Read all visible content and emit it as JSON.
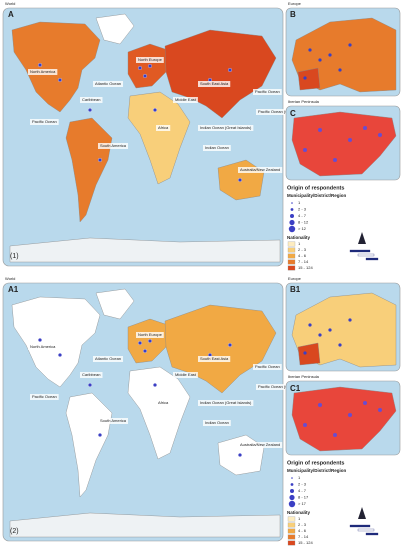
{
  "panels": [
    {
      "label": "(1)",
      "world": {
        "title": "World",
        "letter": "A",
        "regions": [
          "North America",
          "Atlantic Ocean",
          "Caribbean",
          "Pacific Ocean",
          "South America",
          "North Europe",
          "Middle East",
          "South East Asia",
          "Pacific Ocean",
          "Pacific Ocean (Great Islands)",
          "Indian Ocean (Great Islands)",
          "Africa",
          "Indian Ocean",
          "Australia/New Zealand"
        ]
      },
      "europe": {
        "title": "Europe",
        "letter": "B"
      },
      "iberia": {
        "title": "Iberian Peninsula",
        "letter": "C"
      },
      "legend": {
        "title": "Origin of respondents",
        "municipality": {
          "title": "Municipality/District/Region",
          "items": [
            "1",
            "2 - 3",
            "4 - 7",
            "8 - 12",
            "> 12"
          ]
        },
        "nationality": {
          "title": "Nationality",
          "items": [
            {
              "label": "1",
              "color": "#fdecc0"
            },
            {
              "label": "2 - 3",
              "color": "#f8cf7a"
            },
            {
              "label": "4 - 6",
              "color": "#f1a944"
            },
            {
              "label": "7 - 14",
              "color": "#e77b2c"
            },
            {
              "label": "15 - 124",
              "color": "#d9481f"
            }
          ]
        }
      }
    },
    {
      "label": "(2)",
      "world": {
        "title": "World",
        "letter": "A1",
        "regions": [
          "North America",
          "Atlantic Ocean",
          "Caribbean",
          "Pacific Ocean",
          "South America",
          "North Europe",
          "Middle East",
          "South East Asia",
          "Pacific Ocean",
          "Pacific Ocean (Great Islands)",
          "Indian Ocean (Great Islands)",
          "Africa",
          "Indian Ocean",
          "Australia/New Zealand"
        ]
      },
      "europe": {
        "title": "Europe",
        "letter": "B1"
      },
      "iberia": {
        "title": "Iberian Peninsula",
        "letter": "C1"
      },
      "legend": {
        "title": "Origin of respondents",
        "municipality": {
          "title": "Municipality/District/Region",
          "items": [
            "1",
            "2 - 3",
            "4 - 7",
            "8 - 17",
            "> 17"
          ]
        },
        "nationality": {
          "title": "Nationality",
          "items": [
            {
              "label": "1",
              "color": "#fdecc0"
            },
            {
              "label": "2 - 3",
              "color": "#f8cf7a"
            },
            {
              "label": "4 - 6",
              "color": "#f1a944"
            },
            {
              "label": "7 - 14",
              "color": "#e77b2c"
            },
            {
              "label": "15 - 124",
              "color": "#d9481f"
            }
          ]
        }
      }
    }
  ]
}
